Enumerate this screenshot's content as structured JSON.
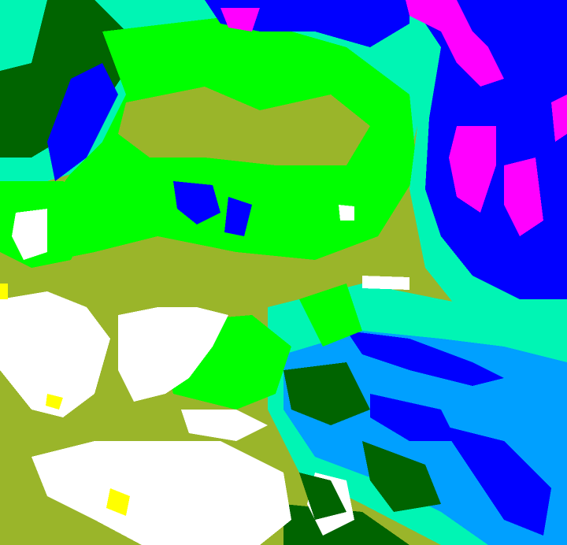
{
  "map": {
    "palette": {
      "olive": "#9ab52a",
      "green": "#00ff00",
      "dark_green": "#006400",
      "aqua": "#00f5b4",
      "light_blue": "#00a0ff",
      "blue": "#0000ff",
      "magenta": "#ff00ff",
      "white": "#ffffff",
      "yellow": "#ffff00"
    }
  }
}
